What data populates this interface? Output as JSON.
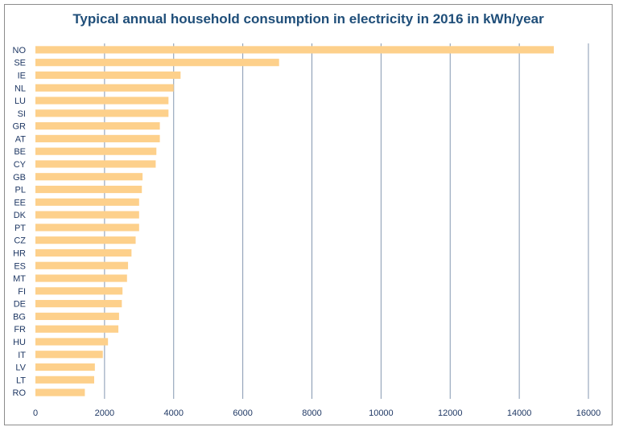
{
  "chart_data": {
    "type": "bar",
    "orientation": "horizontal",
    "title": "Typical annual household consumption in electricity in 2016 in kWh/year",
    "categories": [
      "NO",
      "SE",
      "IE",
      "NL",
      "LU",
      "SI",
      "GR",
      "AT",
      "BE",
      "CY",
      "GB",
      "PL",
      "EE",
      "DK",
      "PT",
      "CZ",
      "HR",
      "ES",
      "MT",
      "FI",
      "DE",
      "BG",
      "FR",
      "HU",
      "IT",
      "LV",
      "LT",
      "RO"
    ],
    "values": [
      15000,
      7050,
      4200,
      4000,
      3850,
      3850,
      3600,
      3600,
      3500,
      3480,
      3100,
      3080,
      3000,
      3000,
      3000,
      2900,
      2780,
      2680,
      2650,
      2520,
      2500,
      2420,
      2400,
      2100,
      1950,
      1720,
      1700,
      1430
    ],
    "xlim": [
      0,
      16000
    ],
    "x_ticks": [
      "0",
      "2000",
      "4000",
      "6000",
      "8000",
      "10000",
      "12000",
      "14000",
      "16000"
    ],
    "grid": "vertical",
    "bar_color": "#fdd08b",
    "grid_color": "#8497b0",
    "label_color": "#1f3864",
    "title_color": "#1f4e79"
  }
}
